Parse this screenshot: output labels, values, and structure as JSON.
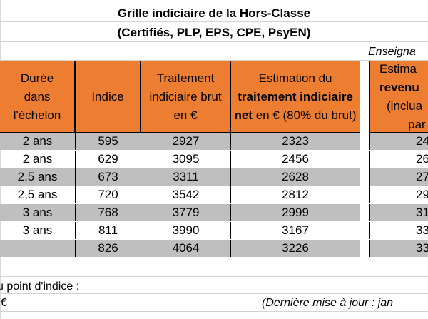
{
  "title_line1": "Grille indiciaire de la Hors-Classe",
  "title_line2": "(Certifiés, PLP, EPS, CPE, PsyEN)",
  "right_section_label": "Enseigna",
  "headers": {
    "duree": "Durée dans l'échelon",
    "indice": "Indice",
    "brut": "Traitement indiciaire brut en €",
    "net_prefix": "Estimation du",
    "net_bold": "traitement indiciaire net",
    "net_suffix": "en € (80% du brut)",
    "right_l1": "Estima",
    "right_l2": "revenu",
    "right_l3": "(inclua",
    "right_l4": "par"
  },
  "rows": [
    {
      "duree": "2 ans",
      "indice": "595",
      "brut": "2927",
      "net": "2323",
      "right": "24"
    },
    {
      "duree": "2 ans",
      "indice": "629",
      "brut": "3095",
      "net": "2456",
      "right": "26"
    },
    {
      "duree": "2,5 ans",
      "indice": "673",
      "brut": "3311",
      "net": "2628",
      "right": "27"
    },
    {
      "duree": "2,5 ans",
      "indice": "720",
      "brut": "3542",
      "net": "2812",
      "right": "29"
    },
    {
      "duree": "3 ans",
      "indice": "768",
      "brut": "3779",
      "net": "2999",
      "right": "31"
    },
    {
      "duree": "3 ans",
      "indice": "811",
      "brut": "3990",
      "net": "3167",
      "right": "33"
    },
    {
      "duree": "",
      "indice": "826",
      "brut": "4064",
      "net": "3226",
      "right": "33"
    }
  ],
  "footer_line1": "u point d'indice :",
  "footer_line2": "€",
  "footer_update": "(Dernière mise à jour : jan"
}
